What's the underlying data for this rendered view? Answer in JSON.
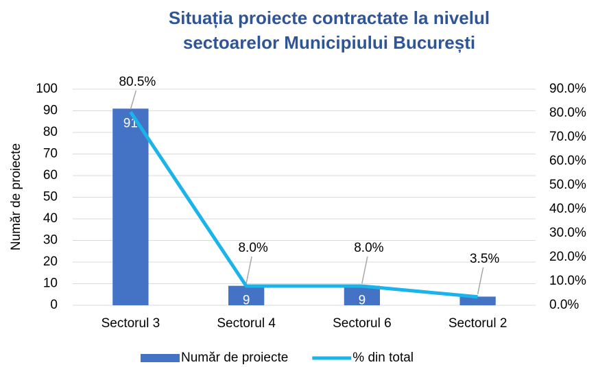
{
  "chart_data": {
    "type": "bar",
    "title": [
      "Situația proiecte contractate la nivelul",
      "sectoarelor Municipiului București"
    ],
    "y_label": "Număr de proiecte",
    "categories": [
      "Sectorul 3",
      "Sectorul 4",
      "Sectorul 6",
      "Sectorul 2"
    ],
    "series": [
      {
        "name": "Număr de proiecte",
        "type": "bar",
        "color": "#4472c4",
        "values": [
          91,
          9,
          9,
          4
        ]
      },
      {
        "name": "% din total",
        "type": "line",
        "axis": "y2",
        "color": "#1ab4ea",
        "values": [
          80.5,
          8.0,
          8.0,
          3.5
        ],
        "value_labels": [
          "80.5%",
          "8.0%",
          "8.0%",
          "3.5%"
        ]
      }
    ],
    "ylim": [
      0,
      100
    ],
    "yticks": [
      0,
      10,
      20,
      30,
      40,
      50,
      60,
      70,
      80,
      90,
      100
    ],
    "y2lim": [
      0,
      90
    ],
    "y2ticks": [
      {
        "value": 0,
        "label": "0.0%"
      },
      {
        "value": 10,
        "label": "10.0%"
      },
      {
        "value": 20,
        "label": "20.0%"
      },
      {
        "value": 30,
        "label": "30.0%"
      },
      {
        "value": 40,
        "label": "40.0%"
      },
      {
        "value": 50,
        "label": "50.0%"
      },
      {
        "value": 60,
        "label": "60.0%"
      },
      {
        "value": 70,
        "label": "70.0%"
      },
      {
        "value": 80,
        "label": "80.0%"
      },
      {
        "value": 90,
        "label": "90.0%"
      }
    ],
    "grid": true,
    "legend": "bottom"
  }
}
